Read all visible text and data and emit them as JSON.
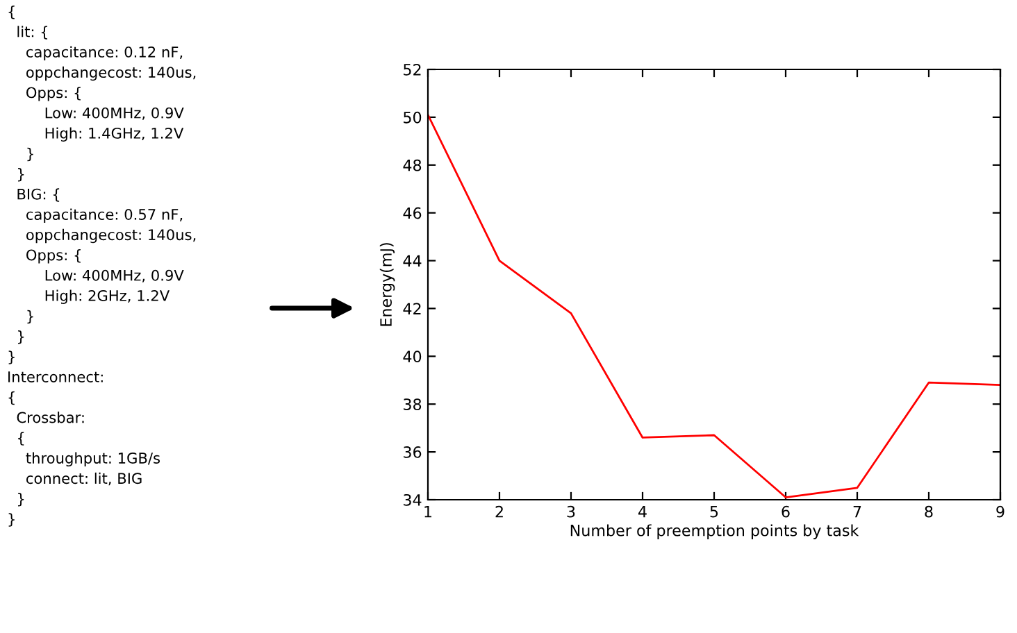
{
  "chart_data": {
    "type": "line",
    "xlabel": "Number of preemption points by task",
    "ylabel": "Energy(mJ)",
    "x": [
      1,
      2,
      3,
      4,
      5,
      6,
      7,
      8,
      9
    ],
    "series": [
      {
        "color": "#ff0000",
        "values": [
          50.1,
          44.0,
          41.8,
          36.6,
          36.7,
          34.1,
          34.5,
          38.9,
          38.8
        ]
      }
    ],
    "xlim": [
      1,
      9
    ],
    "xticks": [
      1,
      2,
      3,
      4,
      5,
      6,
      7,
      8,
      9
    ],
    "ylim": [
      34,
      52
    ],
    "yticks": [
      34,
      36,
      38,
      40,
      42,
      44,
      46,
      48,
      50,
      52
    ],
    "grid": false,
    "legend": false,
    "marker": "none",
    "line_style": "solid",
    "annotations": [
      "{\n  lit: {\n    capacitance: 0.12 nF,\n    oppchangecost: 140us,\n    Opps: {\n        Low: 400MHz, 0.9V\n        High: 1.4GHz, 1.2V\n    }\n  }\n  BIG: {\n    capacitance: 0.57 nF,\n    oppchangecost: 140us,\n    Opps: {\n        Low: 400MHz, 0.9V\n        High: 2GHz, 1.2V\n    }\n  }\n}\nInterconnect:\n{\n  Crossbar:\n  {\n    throughput: 1GB/s\n    connect: lit, BIG\n  }\n}"
    ]
  }
}
